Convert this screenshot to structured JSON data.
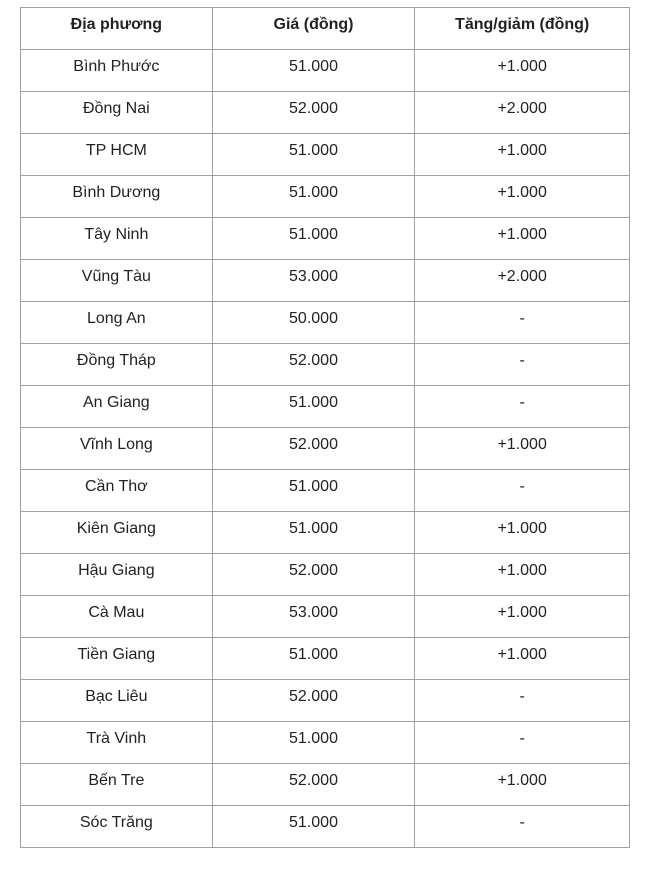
{
  "table": {
    "headers": [
      "Địa phương",
      "Giá (đồng)",
      "Tăng/giảm (đồng)"
    ],
    "rows": [
      [
        "Bình Phước",
        "51.000",
        "+1.000"
      ],
      [
        "Đồng Nai",
        "52.000",
        "+2.000"
      ],
      [
        "TP HCM",
        "51.000",
        "+1.000"
      ],
      [
        "Bình Dương",
        "51.000",
        "+1.000"
      ],
      [
        "Tây Ninh",
        "51.000",
        "+1.000"
      ],
      [
        "Vũng Tàu",
        "53.000",
        "+2.000"
      ],
      [
        "Long An",
        "50.000",
        "-"
      ],
      [
        "Đồng Tháp",
        "52.000",
        "-"
      ],
      [
        "An Giang",
        "51.000",
        "-"
      ],
      [
        "Vĩnh Long",
        "52.000",
        "+1.000"
      ],
      [
        "Cần Thơ",
        "51.000",
        "-"
      ],
      [
        "Kiên Giang",
        "51.000",
        "+1.000"
      ],
      [
        "Hậu Giang",
        "52.000",
        "+1.000"
      ],
      [
        "Cà Mau",
        "53.000",
        "+1.000"
      ],
      [
        "Tiền Giang",
        "51.000",
        "+1.000"
      ],
      [
        "Bạc Liêu",
        "52.000",
        "-"
      ],
      [
        "Trà Vinh",
        "51.000",
        "-"
      ],
      [
        "Bến Tre",
        "52.000",
        "+1.000"
      ],
      [
        "Sóc Trăng",
        "51.000",
        "-"
      ]
    ]
  }
}
